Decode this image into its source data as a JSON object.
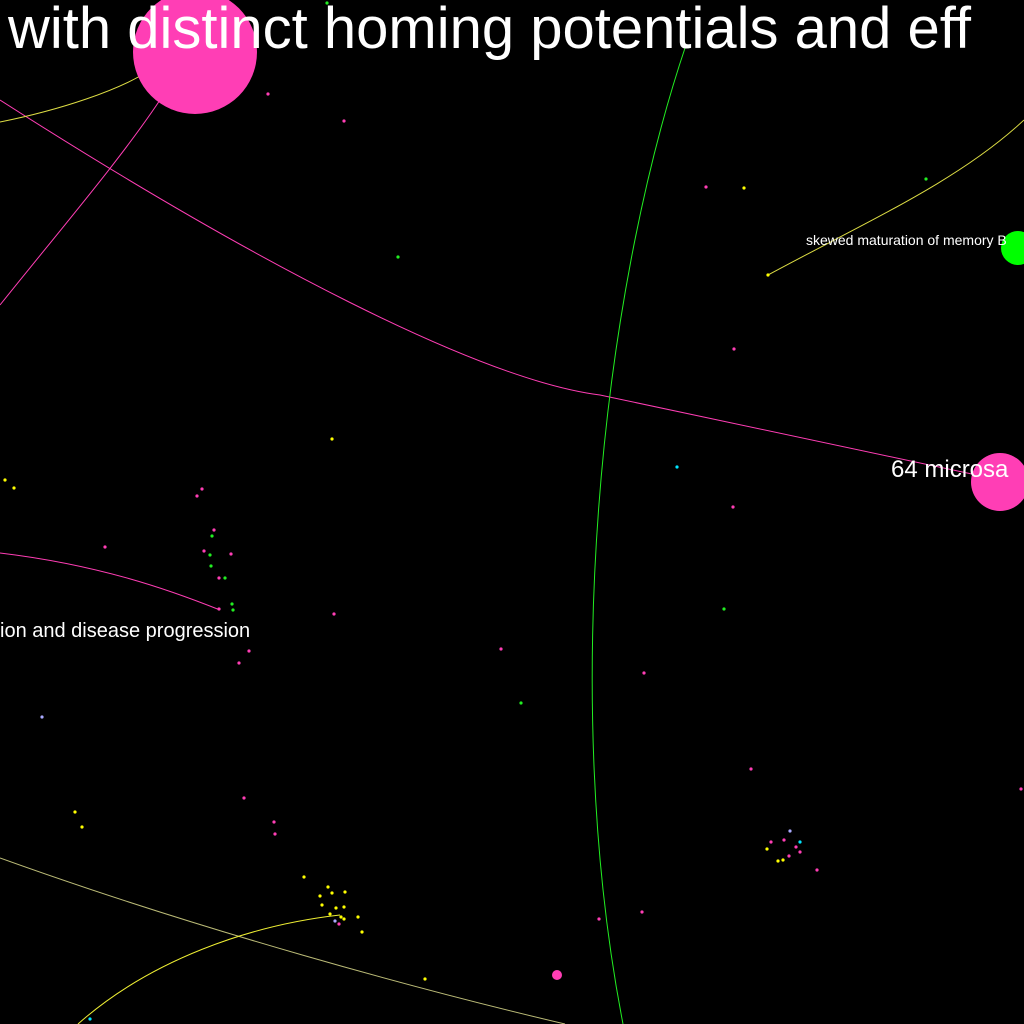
{
  "labels": {
    "headline": "with distinct homing potentials and eff",
    "memory": "skewed maturation of memory B",
    "microsat": "64 microsa",
    "progression": "ion and disease progression"
  },
  "colors": {
    "background": "#000000",
    "magenta": "#ff3eb5",
    "green": "#00ff00",
    "yellow": "#ffff00",
    "cyan": "#00e5ff",
    "lavender": "#aaaaff",
    "label": "#ffffff"
  }
}
